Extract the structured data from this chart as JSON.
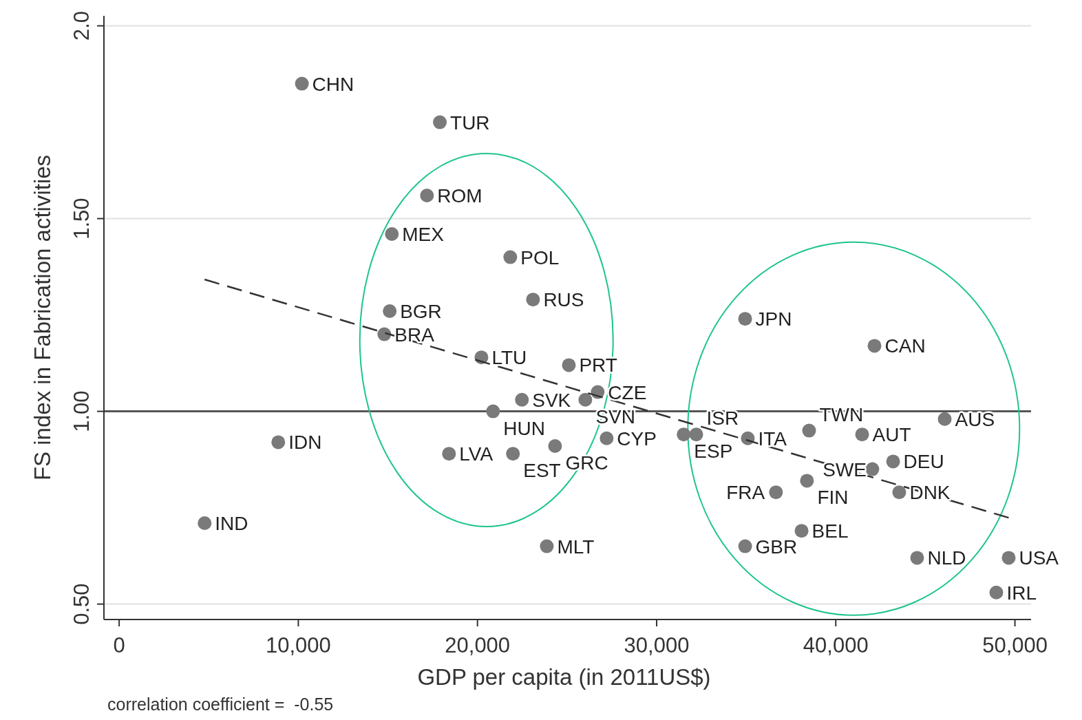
{
  "chart_data": {
    "type": "scatter",
    "xlabel": "GDP per capita (in 2011US$)",
    "ylabel": "FS index in Fabrication activities",
    "annotations": [
      "correlation coefficient =  -0.55",
      {
        "text": "CHN",
        "x": 10200,
        "y": 1.85
      },
      {
        "text": "TUR",
        "x": 17900,
        "y": 1.75
      },
      {
        "text": "ROM",
        "x": 17180,
        "y": 1.56
      },
      {
        "text": "MEX",
        "x": 15220,
        "y": 1.46
      },
      {
        "text": "POL",
        "x": 21830,
        "y": 1.4
      },
      {
        "text": "RUS",
        "x": 23100,
        "y": 1.29
      },
      {
        "text": "BGR",
        "x": 15100,
        "y": 1.26
      },
      {
        "text": "BRA",
        "x": 14800,
        "y": 1.2
      },
      {
        "text": "LTU",
        "x": 20220,
        "y": 1.14
      },
      {
        "text": "PRT",
        "x": 25100,
        "y": 1.12
      },
      {
        "text": "CZE",
        "x": 26710,
        "y": 1.05
      },
      {
        "text": "SVN",
        "x": 26020,
        "y": 1.03
      },
      {
        "text": "SVK",
        "x": 22480,
        "y": 1.03
      },
      {
        "text": "HUN",
        "x": 20870,
        "y": 1.0
      },
      {
        "text": "IDN",
        "x": 8880,
        "y": 0.92
      },
      {
        "text": "LVA",
        "x": 18410,
        "y": 0.89
      },
      {
        "text": "EST",
        "x": 21980,
        "y": 0.89
      },
      {
        "text": "GRC",
        "x": 24330,
        "y": 0.91
      },
      {
        "text": "CYP",
        "x": 27210,
        "y": 0.93
      },
      {
        "text": "ESP",
        "x": 31510,
        "y": 0.94
      },
      {
        "text": "ISR",
        "x": 32210,
        "y": 0.94
      },
      {
        "text": "ITA",
        "x": 35090,
        "y": 0.93
      },
      {
        "text": "IND",
        "x": 4770,
        "y": 0.71
      },
      {
        "text": "MLT",
        "x": 23870,
        "y": 0.65
      },
      {
        "text": "JPN",
        "x": 34940,
        "y": 1.24
      },
      {
        "text": "CAN",
        "x": 42160,
        "y": 1.17
      },
      {
        "text": "AUS",
        "x": 46080,
        "y": 0.98
      },
      {
        "text": "TWN",
        "x": 38510,
        "y": 0.95
      },
      {
        "text": "AUT",
        "x": 41470,
        "y": 0.94
      },
      {
        "text": "DEU",
        "x": 43200,
        "y": 0.87
      },
      {
        "text": "SWE",
        "x": 42040,
        "y": 0.85
      },
      {
        "text": "FIN",
        "x": 38390,
        "y": 0.82
      },
      {
        "text": "FRA",
        "x": 36660,
        "y": 0.79
      },
      {
        "text": "DNK",
        "x": 43540,
        "y": 0.79
      },
      {
        "text": "BEL",
        "x": 38090,
        "y": 0.69
      },
      {
        "text": "GBR",
        "x": 34940,
        "y": 0.65
      },
      {
        "text": "NLD",
        "x": 44540,
        "y": 0.62
      },
      {
        "text": "USA",
        "x": 49650,
        "y": 0.62
      },
      {
        "text": "IRL",
        "x": 48960,
        "y": 0.53
      }
    ],
    "xlim": [
      -850,
      50900
    ],
    "ylim": [
      0.46,
      2.026
    ],
    "xticks": [
      0,
      {
        "value": 10000,
        "label": "10,000"
      },
      {
        "value": 20000,
        "label": "20,000"
      },
      {
        "value": 30000,
        "label": "30,000"
      },
      {
        "value": 40000,
        "label": "40,000"
      },
      {
        "value": 50000,
        "label": "50,000"
      }
    ],
    "yticks": [
      {
        "value": 0.5,
        "label": "0.50"
      },
      {
        "value": 1,
        "label": "1.00"
      },
      {
        "value": 1.5,
        "label": "1.50"
      },
      {
        "value": 2,
        "label": "2.0"
      }
    ],
    "grid": "y",
    "marker": "circle",
    "ref_lines": [
      {
        "axis": "y",
        "value": 1,
        "color": "#555555",
        "line_style": "solid"
      }
    ],
    "series": [
      {
        "color": "#7a7a7a",
        "x": [
          10200,
          17900,
          17180,
          15220,
          21830,
          23100,
          15100,
          14800,
          20220,
          25100,
          26710,
          26020,
          22480,
          20870,
          8880,
          18410,
          21980,
          24330,
          27210,
          31510,
          32210,
          35090,
          4770,
          23870,
          34940,
          42160,
          46080,
          38510,
          41470,
          43200,
          42040,
          38390,
          36660,
          43540,
          38090,
          34940,
          44540,
          49650,
          48960
        ],
        "values": [
          1.85,
          1.75,
          1.56,
          1.46,
          1.4,
          1.29,
          1.26,
          1.2,
          1.14,
          1.12,
          1.05,
          1.03,
          1.03,
          1.0,
          0.92,
          0.89,
          0.89,
          0.91,
          0.93,
          0.94,
          0.94,
          0.93,
          0.71,
          0.65,
          1.24,
          1.17,
          0.98,
          0.95,
          0.94,
          0.87,
          0.85,
          0.82,
          0.79,
          0.79,
          0.69,
          0.65,
          0.62,
          0.62,
          0.53
        ]
      },
      {
        "type": "line",
        "color": "#333333",
        "line_style": "dashed",
        "marker": "none",
        "x": [
          4770,
          49650
        ],
        "values": [
          1.342,
          0.724
        ]
      }
    ]
  }
}
